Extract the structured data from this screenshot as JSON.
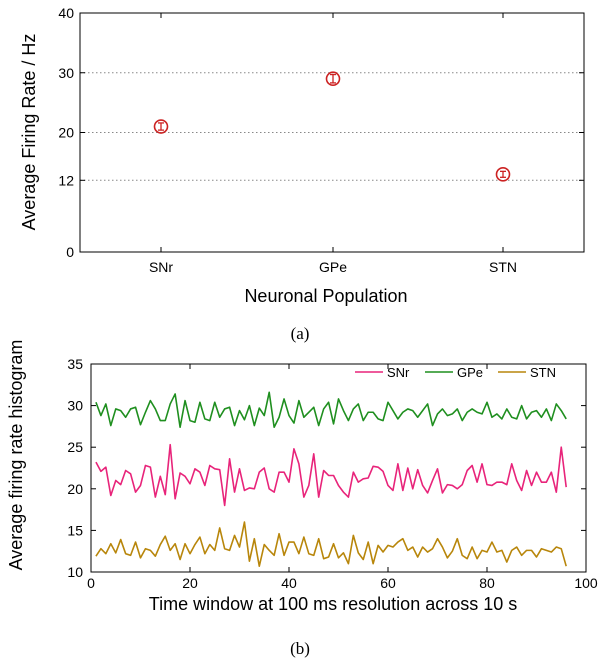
{
  "chart_data": [
    {
      "type": "scatter",
      "caption": "(a)",
      "xlabel": "Neuronal Population",
      "ylabel": "Average Firing Rate / Hz",
      "categories": [
        "SNr",
        "GPe",
        "STN"
      ],
      "values": [
        21,
        29,
        13
      ],
      "error": [
        0.6,
        0.7,
        0.5
      ],
      "ylim": [
        0,
        40
      ],
      "yticks": [
        "0",
        "12",
        "20",
        "30",
        "40"
      ],
      "ytick_values": [
        0,
        12,
        20,
        30,
        40
      ],
      "grid": true,
      "color": "#cc2222"
    },
    {
      "type": "line",
      "caption": "(b)",
      "xlabel": "Time window at 100 ms resolution across 10 s",
      "ylabel": "Average firing rate histogram",
      "xlim": [
        0,
        100
      ],
      "ylim": [
        10,
        35
      ],
      "xticks": [
        "0",
        "20",
        "40",
        "60",
        "80",
        "100"
      ],
      "xtick_values": [
        0,
        20,
        40,
        60,
        80,
        100
      ],
      "yticks": [
        "10",
        "15",
        "20",
        "25",
        "30",
        "35"
      ],
      "ytick_values": [
        10,
        15,
        20,
        25,
        30,
        35
      ],
      "legend_position": "top-right",
      "x": [
        1,
        2,
        3,
        4,
        5,
        6,
        7,
        8,
        9,
        10,
        11,
        12,
        13,
        14,
        15,
        16,
        17,
        18,
        19,
        20,
        21,
        22,
        23,
        24,
        25,
        26,
        27,
        28,
        29,
        30,
        31,
        32,
        33,
        34,
        35,
        36,
        37,
        38,
        39,
        40,
        41,
        42,
        43,
        44,
        45,
        46,
        47,
        48,
        49,
        50,
        51,
        52,
        53,
        54,
        55,
        56,
        57,
        58,
        59,
        60,
        61,
        62,
        63,
        64,
        65,
        66,
        67,
        68,
        69,
        70,
        71,
        72,
        73,
        74,
        75,
        76,
        77,
        78,
        79,
        80,
        81,
        82,
        83,
        84,
        85,
        86,
        87,
        88,
        89,
        90,
        91,
        92,
        93,
        94,
        95,
        96
      ],
      "series": [
        {
          "name": "SNr",
          "color": "#e8247a",
          "values": [
            23.2,
            22.1,
            22.6,
            19.2,
            21.0,
            20.5,
            22.2,
            21.8,
            19.6,
            20.4,
            22.8,
            22.6,
            19.0,
            21.5,
            19.3,
            25.3,
            18.8,
            21.9,
            21.5,
            20.6,
            22.4,
            22.0,
            20.4,
            22.8,
            22.4,
            22.3,
            18.0,
            23.6,
            19.6,
            22.4,
            19.8,
            20.1,
            20.0,
            22.0,
            22.5,
            20.0,
            19.6,
            22.0,
            22.0,
            20.8,
            24.8,
            23.0,
            19.0,
            20.4,
            24.2,
            19.0,
            22.2,
            21.6,
            21.6,
            20.4,
            19.6,
            19.0,
            22.0,
            20.8,
            21.2,
            21.3,
            22.7,
            22.6,
            22.1,
            20.4,
            19.8,
            23.0,
            19.8,
            22.5,
            20.0,
            22.3,
            20.4,
            19.5,
            21.0,
            22.4,
            19.5,
            20.5,
            20.4,
            20.0,
            20.5,
            22.2,
            22.8,
            20.8,
            23.0,
            20.5,
            20.4,
            20.8,
            20.8,
            20.5,
            23.0,
            21.0,
            19.8,
            22.2,
            20.4,
            22.0,
            20.8,
            20.8,
            22.0,
            19.6,
            25.0,
            20.2
          ]
        },
        {
          "name": "GPe",
          "color": "#1f8f1f",
          "values": [
            30.4,
            28.8,
            30.2,
            27.6,
            29.6,
            29.4,
            28.6,
            29.6,
            29.8,
            27.7,
            29.2,
            30.6,
            29.6,
            28.2,
            28.2,
            30.2,
            31.4,
            27.4,
            30.6,
            28.2,
            28.0,
            30.4,
            28.4,
            28.2,
            30.4,
            28.6,
            29.6,
            29.8,
            27.6,
            29.4,
            28.3,
            30.0,
            27.6,
            29.7,
            28.8,
            31.6,
            27.4,
            28.6,
            30.8,
            28.8,
            27.9,
            30.6,
            28.6,
            29.2,
            29.8,
            27.6,
            29.6,
            30.4,
            27.8,
            30.8,
            29.4,
            28.2,
            29.6,
            30.2,
            28.2,
            29.2,
            29.2,
            28.4,
            28.2,
            30.4,
            29.4,
            28.4,
            29.2,
            29.6,
            29.4,
            28.6,
            29.4,
            30.2,
            27.6,
            29.0,
            29.6,
            28.8,
            29.0,
            29.6,
            28.2,
            29.2,
            29.6,
            29.2,
            29.0,
            30.4,
            28.6,
            29.0,
            28.4,
            29.6,
            28.6,
            28.4,
            30.0,
            28.4,
            29.2,
            29.4,
            28.6,
            29.6,
            28.2,
            30.2,
            29.4,
            28.4
          ]
        },
        {
          "name": "STN",
          "color": "#b8860b",
          "values": [
            11.9,
            12.8,
            12.2,
            13.4,
            12.3,
            13.9,
            12.2,
            12.0,
            13.6,
            11.7,
            12.8,
            12.6,
            11.9,
            13.3,
            14.3,
            12.6,
            13.4,
            11.5,
            13.4,
            12.2,
            13.3,
            14.2,
            12.2,
            13.3,
            12.6,
            15.3,
            12.8,
            12.6,
            14.4,
            13.0,
            16.0,
            11.3,
            14.0,
            10.7,
            13.3,
            12.6,
            12.0,
            14.6,
            12.0,
            13.6,
            13.6,
            12.2,
            14.2,
            12.2,
            12.0,
            14.0,
            11.6,
            11.8,
            13.4,
            11.7,
            12.3,
            11.0,
            14.4,
            12.3,
            11.5,
            13.6,
            11.0,
            13.2,
            12.4,
            13.2,
            13.0,
            13.6,
            14.0,
            12.6,
            13.0,
            11.8,
            13.0,
            12.4,
            12.8,
            14.0,
            13.0,
            11.7,
            12.5,
            14.0,
            12.0,
            11.6,
            13.0,
            11.6,
            12.6,
            12.4,
            13.6,
            12.4,
            12.6,
            11.2,
            12.6,
            13.0,
            12.0,
            12.6,
            12.6,
            11.8,
            12.8,
            12.6,
            12.4,
            13.0,
            12.8,
            10.7
          ]
        }
      ]
    }
  ]
}
